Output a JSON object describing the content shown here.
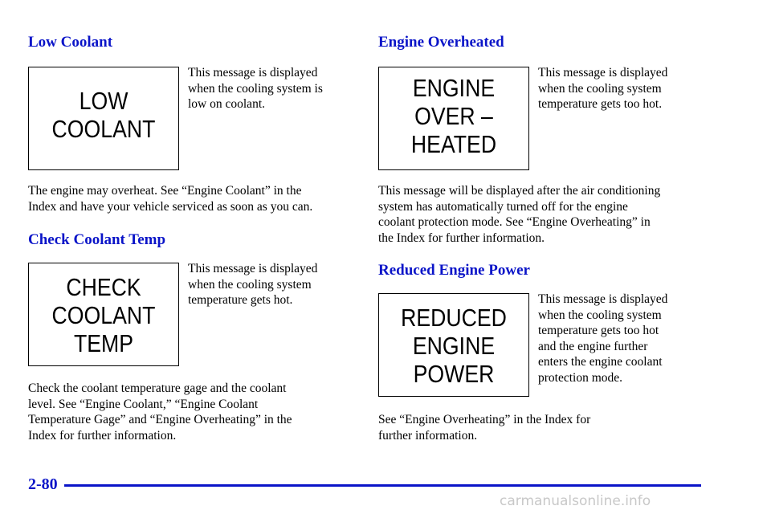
{
  "sections": [
    {
      "title": "Low Coolant",
      "display": [
        "LOW",
        "COOLANT"
      ],
      "note": [
        "This message is displayed",
        "when the cooling system is",
        "low on coolant."
      ],
      "body": [
        "The engine may overheat. See “Engine Coolant” in the",
        "Index and have your vehicle serviced as soon as you can."
      ]
    },
    {
      "title": "Check Coolant Temp",
      "display": [
        "CHECK",
        "COOLANT",
        "TEMP"
      ],
      "note": [
        "This message is displayed",
        "when the cooling system",
        "temperature gets hot."
      ],
      "body": [
        "Check the coolant temperature gage and the coolant",
        "level. See “Engine Coolant,” “Engine Coolant",
        "Temperature Gage” and “Engine Overheating” in the",
        "Index for further information."
      ]
    },
    {
      "title": "Engine Overheated",
      "display": [
        "ENGINE",
        "OVER –",
        "HEATED"
      ],
      "note": [
        "This message is displayed",
        "when the cooling system",
        "temperature gets too hot."
      ],
      "body": [
        "This message will be displayed after the air conditioning",
        "system has automatically turned off for the engine",
        "coolant protection mode. See “Engine Overheating” in",
        "the Index for further information."
      ]
    },
    {
      "title": "Reduced Engine Power",
      "display": [
        "REDUCED",
        "ENGINE",
        "POWER"
      ],
      "note": [
        "This message is displayed",
        "when the cooling system",
        "temperature gets too hot",
        "and the engine further",
        "enters the engine coolant",
        "protection mode."
      ],
      "body": [
        "See “Engine Overheating” in the Index for",
        "further information."
      ]
    }
  ],
  "footer": {
    "page_number": "2-80",
    "watermark": "carmanualsonline.info"
  }
}
